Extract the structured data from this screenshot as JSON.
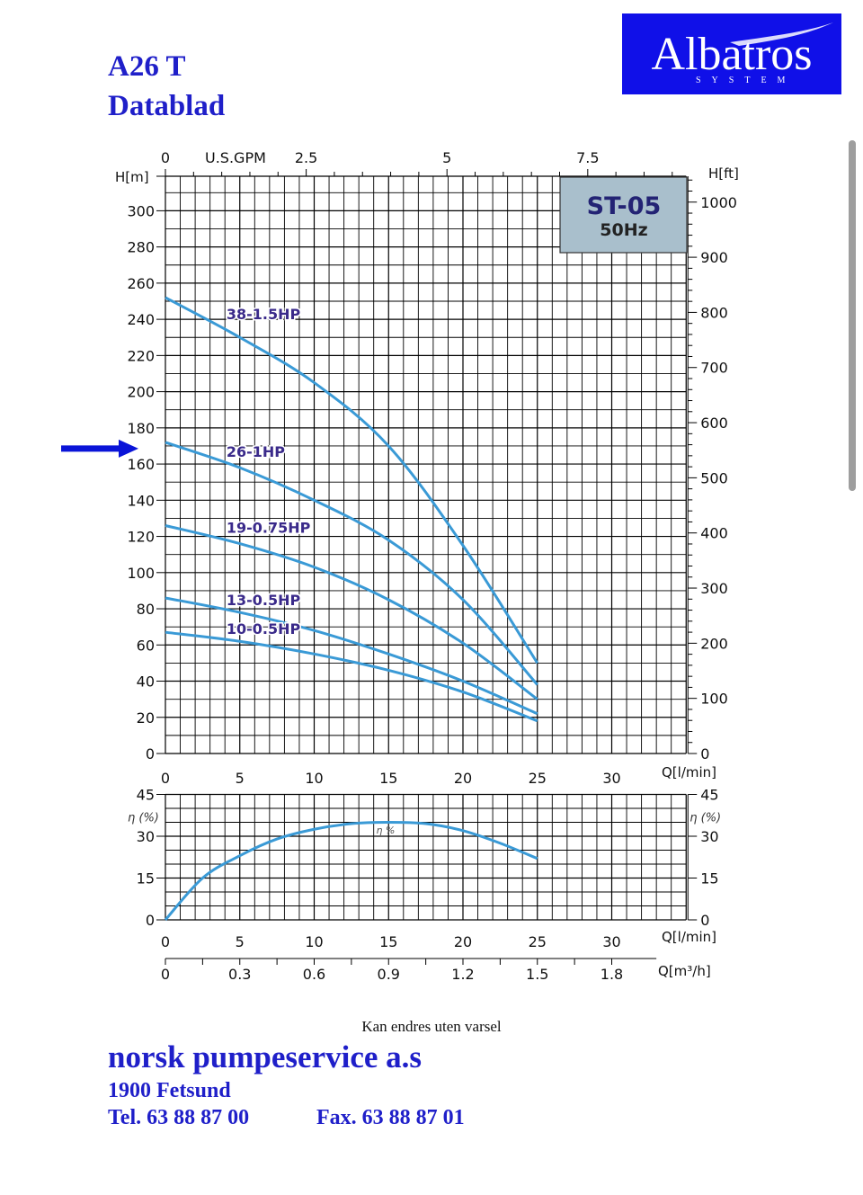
{
  "header": {
    "title_line1": "A26 T",
    "title_line2": "Datablad",
    "logo_name": "Albatros",
    "logo_sub": "SYSTEM"
  },
  "colors": {
    "heading": "#1f1fc9",
    "curve": "#3a9ad6",
    "grid": "#000000",
    "label": "#3a2a8a",
    "logo_bg": "#1010e8",
    "badge_bg": "#a9bfcc",
    "arrow": "#0a14d8"
  },
  "chart_data": [
    {
      "type": "line",
      "badge_model": "ST-05",
      "badge_freq": "50Hz",
      "x_label": "Q[l/min]",
      "y_left_label": "H[m]",
      "y_right_label": "H[ft]",
      "top_axis_label": "U.S.GPM",
      "xlim": [
        0,
        35
      ],
      "ylim": [
        0,
        320
      ],
      "x_ticks": [
        0,
        5,
        10,
        15,
        20,
        25,
        30
      ],
      "y_ticks": [
        0,
        20,
        40,
        60,
        80,
        100,
        120,
        140,
        160,
        180,
        200,
        220,
        240,
        260,
        280,
        300
      ],
      "top_ticks": [
        "0",
        "2.5",
        "5",
        "7.5"
      ],
      "top_tick_values_gpm": [
        0,
        2.5,
        5,
        7.5
      ],
      "right_ticks": [
        "0",
        "100",
        "200",
        "300",
        "400",
        "500",
        "600",
        "700",
        "800",
        "900",
        "1000"
      ],
      "right_tick_values_ft": [
        0,
        100,
        200,
        300,
        400,
        500,
        600,
        700,
        800,
        900,
        1000
      ],
      "arrow_at_y": 175,
      "series": [
        {
          "name": "38-1.5HP",
          "label_at": [
            4.1,
            240
          ],
          "x": [
            0,
            5,
            10,
            15,
            20,
            25
          ],
          "y": [
            252,
            230,
            205,
            170,
            115,
            50
          ]
        },
        {
          "name": "26-1HP",
          "label_at": [
            4.1,
            164
          ],
          "x": [
            0,
            5,
            10,
            15,
            20,
            25
          ],
          "y": [
            172,
            158,
            140,
            118,
            85,
            38
          ]
        },
        {
          "name": "19-0.75HP",
          "label_at": [
            4.1,
            122
          ],
          "x": [
            0,
            5,
            10,
            15,
            20,
            25
          ],
          "y": [
            126,
            116,
            103,
            85,
            61,
            30
          ]
        },
        {
          "name": "13-0.5HP",
          "label_at": [
            4.1,
            82
          ],
          "x": [
            0,
            5,
            10,
            15,
            20,
            25
          ],
          "y": [
            86,
            78,
            68,
            55,
            40,
            22
          ]
        },
        {
          "name": "10-0.5HP",
          "label_at": [
            4.1,
            66
          ],
          "x": [
            0,
            5,
            10,
            15,
            20,
            25
          ],
          "y": [
            67,
            62,
            55,
            46,
            34,
            18
          ]
        }
      ]
    },
    {
      "type": "line",
      "x_label": "Q[l/min]",
      "x2_label": "Q[m³/h]",
      "y_label": "η (%)",
      "curve_label": "η %",
      "xlim": [
        0,
        35
      ],
      "ylim": [
        0,
        45
      ],
      "x_ticks": [
        0,
        5,
        10,
        15,
        20,
        25,
        30
      ],
      "x2_ticks": [
        "0",
        "0.3",
        "0.6",
        "0.9",
        "1.2",
        "1.5",
        "1.8"
      ],
      "x2_tick_values": [
        0,
        0.3,
        0.6,
        0.9,
        1.2,
        1.5,
        1.8
      ],
      "y_ticks": [
        0,
        15,
        30,
        45
      ],
      "right_ticks": [
        "0",
        "15",
        "30",
        "45"
      ],
      "series": [
        {
          "name": "η %",
          "x": [
            0,
            2.5,
            5,
            7.5,
            10,
            12.5,
            15,
            17.5,
            20,
            22.5,
            25
          ],
          "y": [
            0,
            15,
            23,
            29,
            32.5,
            34.5,
            35,
            34.5,
            32,
            27.5,
            22
          ]
        }
      ]
    }
  ],
  "footer": {
    "note": "Kan endres uten varsel",
    "company": "norsk pumpeservice a.s",
    "address": "1900 Fetsund",
    "tel": "Tel. 63 88 87 00",
    "fax": "Fax. 63 88 87 01"
  }
}
